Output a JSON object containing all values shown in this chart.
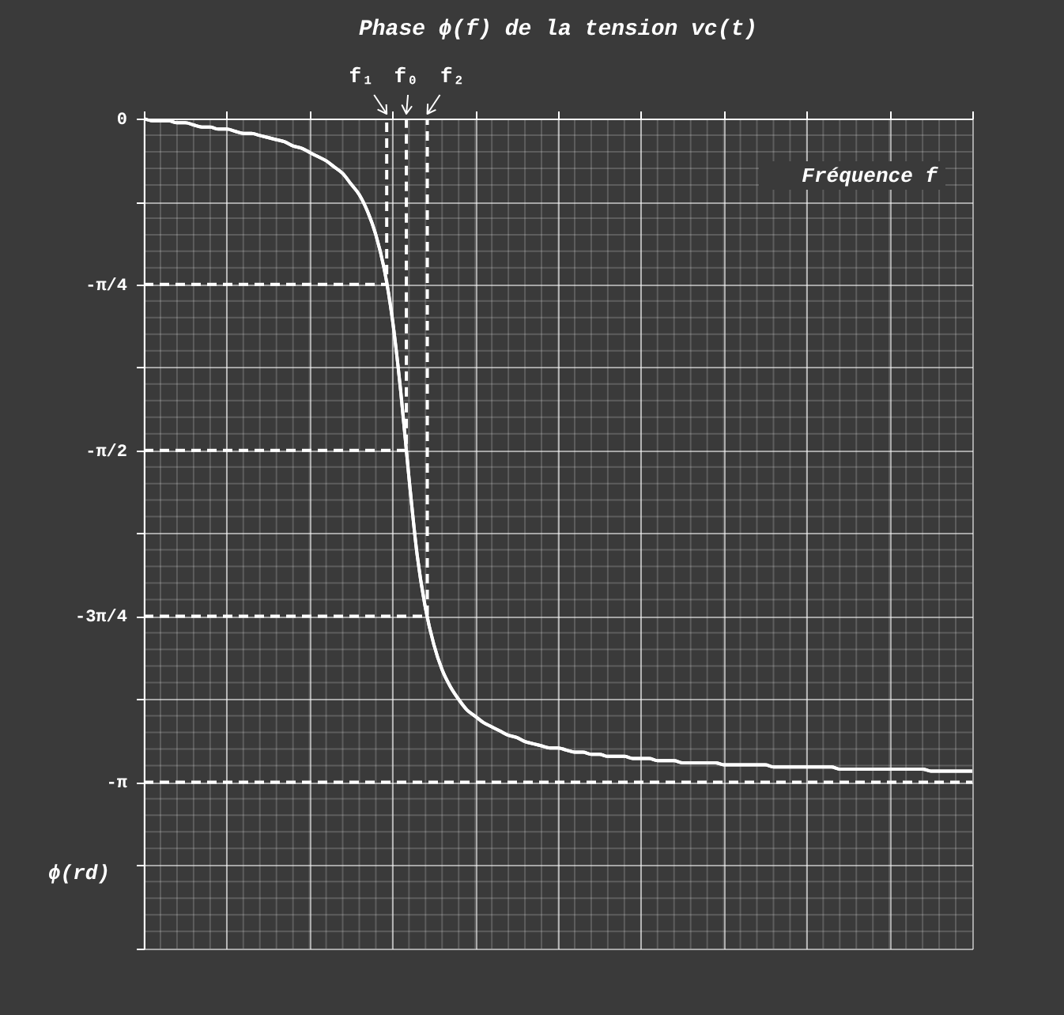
{
  "chart_data": {
    "type": "line",
    "title": "Phase ϕ(f) de la tension vc(t)",
    "xlabel": "Fréquence f",
    "ylabel": "ϕ(rd)",
    "categories": [
      null,
      null,
      null,
      null,
      null,
      null,
      null,
      null,
      null,
      null,
      null,
      null,
      null,
      null,
      null,
      null,
      null,
      null,
      null,
      null,
      null,
      null,
      null,
      null,
      null,
      null,
      null,
      null,
      null,
      null,
      null,
      null,
      null,
      null,
      null,
      null,
      null,
      null,
      null,
      null,
      null,
      null,
      null,
      null,
      null,
      null,
      null,
      null,
      null,
      null,
      null,
      null,
      null,
      null,
      null,
      null,
      null,
      null,
      null,
      null,
      null,
      null,
      null,
      null,
      null,
      null,
      null,
      null,
      null,
      null,
      null,
      null,
      null,
      null,
      null,
      null,
      null,
      null,
      null,
      null,
      null,
      null,
      null,
      null,
      null,
      null,
      null,
      null,
      null,
      null,
      null,
      null,
      null,
      null,
      null,
      null,
      null,
      null,
      null,
      null,
      null
    ],
    "values": [
      0,
      -0.01,
      -0.01,
      -0.01,
      -0.02,
      -0.02,
      -0.03,
      -0.04,
      -0.04,
      -0.05,
      -0.05,
      -0.06,
      -0.07,
      -0.07,
      -0.08,
      -0.09,
      -0.1,
      -0.11,
      -0.13,
      -0.14,
      -0.16,
      -0.18,
      -0.2,
      -0.23,
      -0.26,
      -0.31,
      -0.36,
      -0.44,
      -0.55,
      -0.71,
      -0.95,
      -1.29,
      -1.7,
      -2.07,
      -2.32,
      -2.49,
      -2.61,
      -2.69,
      -2.75,
      -2.8,
      -2.83,
      -2.86,
      -2.88,
      -2.9,
      -2.92,
      -2.93,
      -2.95,
      -2.96,
      -2.97,
      -2.98,
      -2.98,
      -2.99,
      -3.0,
      -3.0,
      -3.01,
      -3.01,
      -3.02,
      -3.02,
      -3.02,
      -3.03,
      -3.03,
      -3.03,
      -3.04,
      -3.04,
      -3.04,
      -3.05,
      -3.05,
      -3.05,
      -3.05,
      -3.05,
      -3.06,
      -3.06,
      -3.06,
      -3.06,
      -3.06,
      -3.06,
      -3.07,
      -3.07,
      -3.07,
      -3.07,
      -3.07,
      -3.07,
      -3.07,
      -3.07,
      -3.08,
      -3.08,
      -3.08,
      -3.08,
      -3.08,
      -3.08,
      -3.08,
      -3.08,
      -3.08,
      -3.08,
      -3.08,
      -3.09,
      -3.09,
      -3.09,
      -3.09,
      -3.09,
      -3.09
    ],
    "color": "#ffffff",
    "marker": "none",
    "line_style": "solid",
    "ylim": [
      -3.93,
      0
    ],
    "yticks": [
      0,
      {
        "value": -0.393,
        "label": null
      },
      {
        "value": -0.785,
        "label": "-π/4"
      },
      {
        "value": -1.178,
        "label": null
      },
      {
        "value": -1.571,
        "label": "-π/2"
      },
      {
        "value": -1.963,
        "label": null
      },
      {
        "value": -2.356,
        "label": "-3π/4"
      },
      {
        "value": -2.749,
        "label": null
      },
      {
        "value": -3.142,
        "label": "-π"
      },
      {
        "value": -3.534,
        "label": null
      },
      {
        "value": -3.927,
        "label": null
      }
    ],
    "grid": true,
    "tick_labels": "y",
    "ref_lines": [
      {
        "axis": "y",
        "value": -0.785,
        "label": "f₁",
        "color": "#ffffff",
        "line_style": "dashed"
      },
      {
        "axis": "y",
        "value": -1.571,
        "label": "f₀",
        "color": "#ffffff",
        "line_style": "dashed"
      },
      {
        "axis": "y",
        "value": -2.356,
        "label": "f₂",
        "color": "#ffffff",
        "line_style": "dashed"
      },
      {
        "axis": "y",
        "value": -3.142,
        "color": "#ffffff",
        "line_style": "dashed"
      }
    ]
  }
}
